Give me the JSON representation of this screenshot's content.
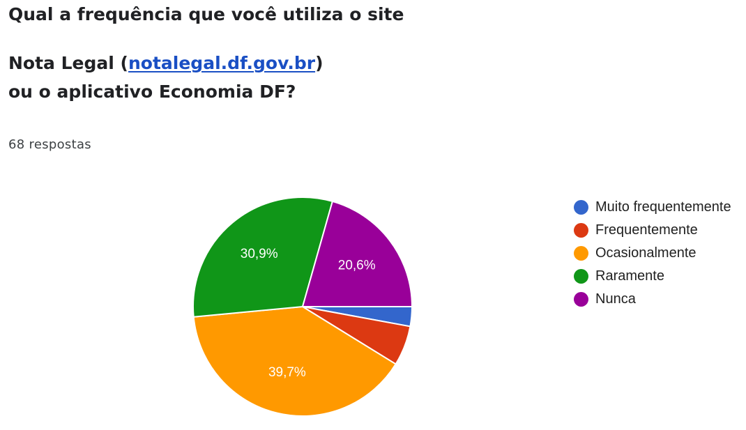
{
  "question": {
    "line1": "Qual a frequência que você utiliza o site",
    "line2_prefix": "Nota Legal (",
    "line2_link": "notalegal.df.gov.br",
    "line2_suffix": ")",
    "line3": "ou o aplicativo Economia DF?"
  },
  "responses_count": "68 respostas",
  "chart_data": {
    "type": "pie",
    "title": "",
    "legend_position": "right",
    "start_angle_deg": 90,
    "direction": "clockwise",
    "slices": [
      {
        "name": "Muito frequentemente",
        "percent": 2.9,
        "label": "",
        "color": "#3366cc"
      },
      {
        "name": "Frequentemente",
        "percent": 5.9,
        "label": "",
        "color": "#dc3912"
      },
      {
        "name": "Ocasionalmente",
        "percent": 39.7,
        "label": "39,7%",
        "color": "#ff9900"
      },
      {
        "name": "Raramente",
        "percent": 30.9,
        "label": "30,9%",
        "color": "#109618"
      },
      {
        "name": "Nunca",
        "percent": 20.6,
        "label": "20,6%",
        "color": "#990099"
      }
    ]
  }
}
